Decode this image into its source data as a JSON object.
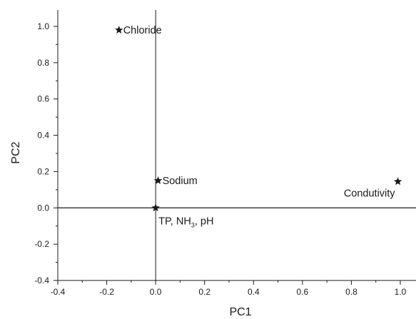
{
  "chart_data": {
    "type": "scatter",
    "title": "",
    "xlabel": "PC1",
    "ylabel": "PC2",
    "xlim": [
      -0.4,
      1.08
    ],
    "ylim": [
      -0.4,
      1.1
    ],
    "x_ticks": [
      -0.4,
      -0.2,
      0.0,
      0.2,
      0.4,
      0.6,
      0.8,
      1.0
    ],
    "y_ticks": [
      -0.4,
      -0.2,
      0.0,
      0.2,
      0.4,
      0.6,
      0.8,
      1.0
    ],
    "x_tick_labels": [
      "-0.4",
      "-0.2",
      "0.0",
      "0.2",
      "0.4",
      "0.6",
      "0.8",
      "1.0"
    ],
    "y_tick_labels": [
      "-0.4",
      "-0.2",
      "0.0",
      "0.2",
      "0.4",
      "0.6",
      "0.8",
      "1.0"
    ],
    "reference_lines": {
      "x": 0,
      "y": 0
    },
    "marker": "star",
    "marker_color": "#1a1a1a",
    "points": [
      {
        "label": "Chloride",
        "x": -0.15,
        "y": 0.98
      },
      {
        "label": "Sodium",
        "x": 0.01,
        "y": 0.15
      },
      {
        "label": "Condutivity",
        "x": 0.99,
        "y": 0.145
      },
      {
        "label": "TP, NH3, pH",
        "x": 0.0,
        "y": 0.0
      }
    ],
    "grid": false,
    "legend": "none"
  }
}
